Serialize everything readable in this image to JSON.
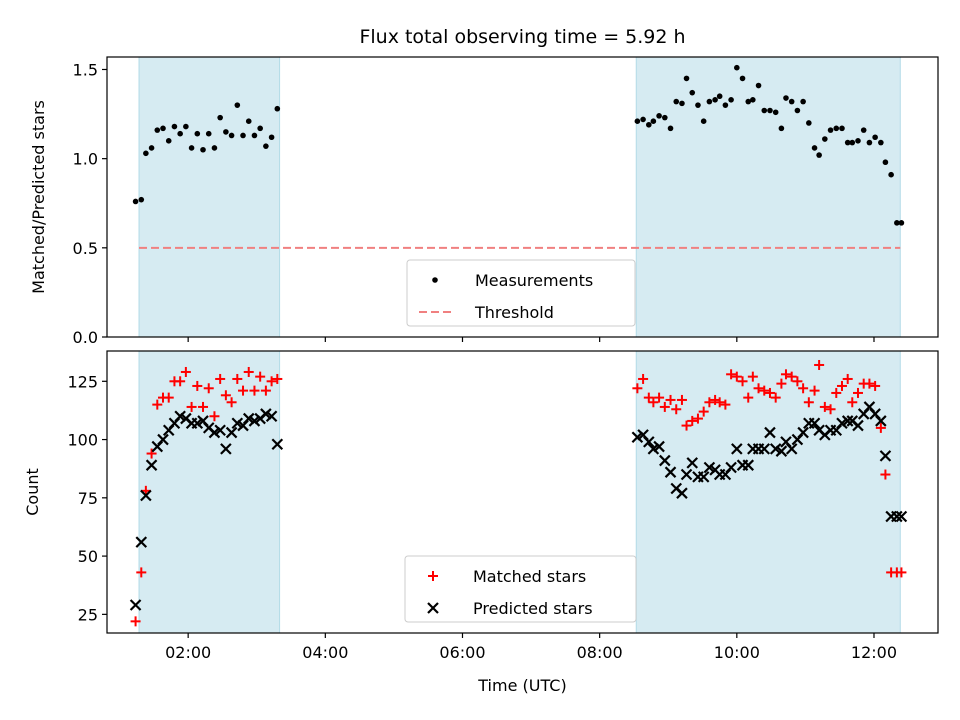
{
  "chart_data": [
    {
      "type": "scatter",
      "title": "Flux total observing time = 5.92 h",
      "ylabel": "Matched/Predicted stars",
      "xlabel": "",
      "ylim": [
        0,
        1.57
      ],
      "yticks": [
        "0.0",
        "0.5",
        "1.0",
        "1.5"
      ],
      "shaded_periods": [
        [
          "01:17",
          "03:20"
        ],
        [
          "08:32",
          "12:23"
        ]
      ],
      "shade_color": "#add8e6",
      "threshold": {
        "name": "Threshold",
        "value": 0.5,
        "color": "#f08080",
        "x_range": [
          "01:17",
          "12:23"
        ]
      },
      "series": [
        {
          "name": "Measurements",
          "color": "#000000",
          "marker": "dot",
          "x": [
            "01:14",
            "01:19",
            "01:23",
            "01:28",
            "01:33",
            "01:38",
            "01:43",
            "01:48",
            "01:53",
            "01:58",
            "02:03",
            "02:08",
            "02:13",
            "02:18",
            "02:23",
            "02:28",
            "02:33",
            "02:38",
            "02:43",
            "02:48",
            "02:53",
            "02:58",
            "03:03",
            "03:08",
            "03:13",
            "03:18",
            "08:33",
            "08:38",
            "08:43",
            "08:47",
            "08:52",
            "08:57",
            "09:02",
            "09:07",
            "09:12",
            "09:16",
            "09:21",
            "09:26",
            "09:31",
            "09:36",
            "09:41",
            "09:45",
            "09:50",
            "09:55",
            "10:00",
            "10:05",
            "10:10",
            "10:14",
            "10:19",
            "10:24",
            "10:29",
            "10:34",
            "10:39",
            "10:43",
            "10:48",
            "10:53",
            "10:58",
            "11:03",
            "11:08",
            "11:12",
            "11:17",
            "11:22",
            "11:27",
            "11:32",
            "11:37",
            "11:41",
            "11:46",
            "11:51",
            "11:56",
            "12:01",
            "12:06",
            "12:10",
            "12:15",
            "12:20",
            "12:24"
          ],
          "y": [
            0.76,
            0.77,
            1.03,
            1.06,
            1.16,
            1.17,
            1.1,
            1.18,
            1.14,
            1.18,
            1.06,
            1.14,
            1.05,
            1.14,
            1.06,
            1.23,
            1.15,
            1.13,
            1.3,
            1.13,
            1.21,
            1.13,
            1.17,
            1.07,
            1.12,
            1.28,
            1.21,
            1.22,
            1.19,
            1.21,
            1.24,
            1.23,
            1.17,
            1.32,
            1.31,
            1.45,
            1.37,
            1.3,
            1.21,
            1.32,
            1.33,
            1.35,
            1.3,
            1.33,
            1.51,
            1.45,
            1.32,
            1.33,
            1.41,
            1.27,
            1.27,
            1.26,
            1.17,
            1.34,
            1.32,
            1.27,
            1.32,
            1.2,
            1.06,
            1.02,
            1.11,
            1.16,
            1.17,
            1.17,
            1.09,
            1.09,
            1.1,
            1.16,
            1.09,
            1.12,
            1.09,
            0.98,
            0.91,
            0.64,
            0.64
          ]
        }
      ],
      "legend": {
        "position": "lower-center",
        "entries": [
          "Measurements",
          "Threshold"
        ]
      }
    },
    {
      "type": "scatter",
      "title": "",
      "xlabel": "Time (UTC)",
      "ylabel": "Count",
      "ylim": [
        17,
        138
      ],
      "yticks": [
        "25",
        "50",
        "75",
        "100",
        "125"
      ],
      "xlim": [
        "00:49",
        "12:56"
      ],
      "xticks": [
        "02:00",
        "04:00",
        "06:00",
        "08:00",
        "10:00",
        "12:00"
      ],
      "series": [
        {
          "name": "Matched stars",
          "color": "#ff0000",
          "marker": "plus",
          "x": [
            "01:14",
            "01:19",
            "01:23",
            "01:28",
            "01:33",
            "01:38",
            "01:43",
            "01:48",
            "01:53",
            "01:58",
            "02:03",
            "02:08",
            "02:13",
            "02:18",
            "02:23",
            "02:28",
            "02:33",
            "02:38",
            "02:43",
            "02:48",
            "02:53",
            "02:58",
            "03:03",
            "03:08",
            "03:13",
            "03:18",
            "08:33",
            "08:38",
            "08:43",
            "08:47",
            "08:52",
            "08:57",
            "09:02",
            "09:07",
            "09:12",
            "09:16",
            "09:21",
            "09:26",
            "09:31",
            "09:36",
            "09:41",
            "09:45",
            "09:50",
            "09:55",
            "10:00",
            "10:05",
            "10:10",
            "10:14",
            "10:19",
            "10:24",
            "10:29",
            "10:34",
            "10:39",
            "10:43",
            "10:48",
            "10:53",
            "10:58",
            "11:03",
            "11:08",
            "11:12",
            "11:17",
            "11:22",
            "11:27",
            "11:32",
            "11:37",
            "11:41",
            "11:46",
            "11:51",
            "11:56",
            "12:01",
            "12:06",
            "12:10",
            "12:15",
            "12:20",
            "12:24"
          ],
          "y": [
            22,
            43,
            78,
            94,
            115,
            118,
            118,
            125,
            125,
            129,
            114,
            123,
            114,
            122,
            110,
            126,
            119,
            116,
            126,
            121,
            129,
            121,
            127,
            121,
            125,
            126,
            122,
            126,
            118,
            116,
            118,
            114,
            117,
            113,
            117,
            106,
            108,
            109,
            112,
            116,
            117,
            116,
            115,
            128,
            127,
            125,
            118,
            127,
            122,
            121,
            120,
            118,
            124,
            128,
            127,
            125,
            122,
            116,
            121,
            132,
            114,
            113,
            120,
            123,
            126,
            116,
            120,
            124,
            124,
            123,
            105,
            85,
            43,
            43,
            43
          ]
        },
        {
          "name": "Predicted stars",
          "color": "#000000",
          "marker": "x",
          "x": [
            "01:14",
            "01:19",
            "01:23",
            "01:28",
            "01:33",
            "01:38",
            "01:43",
            "01:48",
            "01:53",
            "01:58",
            "02:03",
            "02:08",
            "02:13",
            "02:18",
            "02:23",
            "02:28",
            "02:33",
            "02:38",
            "02:43",
            "02:48",
            "02:53",
            "02:58",
            "03:03",
            "03:08",
            "03:13",
            "03:18",
            "08:33",
            "08:38",
            "08:43",
            "08:47",
            "08:52",
            "08:57",
            "09:02",
            "09:07",
            "09:12",
            "09:16",
            "09:21",
            "09:26",
            "09:31",
            "09:36",
            "09:41",
            "09:45",
            "09:50",
            "09:55",
            "10:00",
            "10:05",
            "10:10",
            "10:14",
            "10:19",
            "10:24",
            "10:29",
            "10:34",
            "10:39",
            "10:43",
            "10:48",
            "10:53",
            "10:58",
            "11:03",
            "11:08",
            "11:12",
            "11:17",
            "11:22",
            "11:27",
            "11:32",
            "11:37",
            "11:41",
            "11:46",
            "11:51",
            "11:56",
            "12:01",
            "12:06",
            "12:10",
            "12:15",
            "12:20",
            "12:24"
          ],
          "y": [
            29,
            56,
            76,
            89,
            97,
            100,
            104,
            107,
            110,
            109,
            107,
            107,
            108,
            105,
            103,
            104,
            96,
            103,
            107,
            106,
            109,
            108,
            109,
            111,
            110,
            98,
            101,
            102,
            99,
            96,
            97,
            91,
            86,
            79,
            77,
            85,
            90,
            84,
            84,
            88,
            87,
            85,
            85,
            88,
            96,
            89,
            89,
            96,
            96,
            96,
            103,
            96,
            95,
            99,
            96,
            100,
            103,
            107,
            107,
            104,
            102,
            104,
            104,
            107,
            108,
            108,
            106,
            111,
            114,
            111,
            108,
            93,
            67,
            67,
            67
          ]
        }
      ],
      "legend": {
        "position": "lower-center",
        "entries": [
          "Matched stars",
          "Predicted stars"
        ]
      }
    }
  ]
}
